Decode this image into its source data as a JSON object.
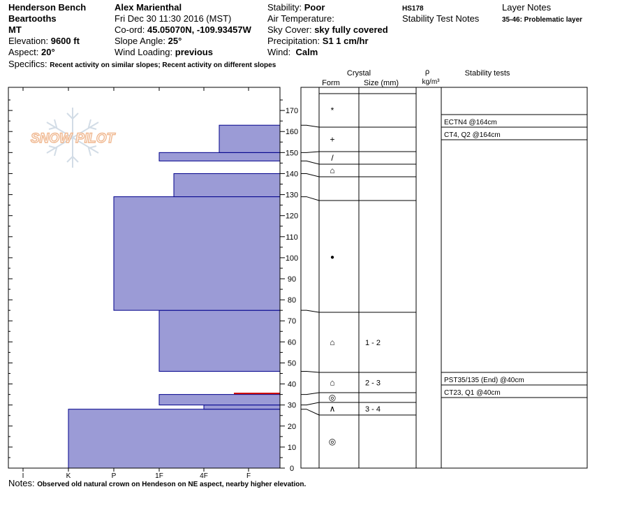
{
  "header": {
    "location": "Henderson Bench",
    "range": "Beartooths",
    "state": "MT",
    "elevation_label": "Elevation:",
    "elevation_value": "9600 ft",
    "aspect_label": "Aspect:",
    "aspect_value": "20°",
    "observer": "Alex Marienthal",
    "datetime": "Fri Dec 30 11:30 2016 (MST)",
    "coord_label": "Co-ord:",
    "coord_value": "45.05070N, -109.93457W",
    "slope_label": "Slope Angle:",
    "slope_value": "25°",
    "wind_loading_label": "Wind Loading:",
    "wind_loading_value": "previous",
    "stability_label": "Stability:",
    "stability_value": "Poor",
    "air_temp_label": "Air Temperature:",
    "sky_label": "Sky Cover:",
    "sky_value": "sky fully covered",
    "precip_label": "Precipitation:",
    "precip_value": "S1 1 cm/hr",
    "wind_label": "Wind:",
    "wind_value": "Calm",
    "pit_id": "HS178",
    "stability_notes": "Stability Test Notes",
    "layer_notes_title": "Layer Notes",
    "layer_note": "35-46: Problematic layer",
    "specifics_label": "Specifics:",
    "specifics_value": "Recent activity on similar slopes; Recent activity on different slopes",
    "notes_label": "Notes:",
    "notes_value": "Observed old natural crown on Hendeson on NE aspect, nearby higher elevation."
  },
  "watermark": {
    "text": "SNOW PILOT",
    "color": "#f0b890"
  },
  "colors": {
    "bar_fill": "#9b9bd6",
    "bar_stroke": "#00008b",
    "weak_layer": "#cc0000"
  },
  "chart_data": {
    "type": "bar",
    "orientation": "horizontal",
    "description_axis_x": "hand hardness",
    "x_ticks": [
      "I",
      "K",
      "P",
      "1F",
      "4F",
      "F"
    ],
    "x_order": [
      "F",
      "4F",
      "1F",
      "P",
      "K",
      "I"
    ],
    "ylim": [
      0,
      180
    ],
    "y_ticks": [
      0,
      10,
      20,
      30,
      40,
      50,
      60,
      70,
      80,
      90,
      100,
      110,
      120,
      130,
      140,
      150,
      160,
      170
    ],
    "layers": [
      {
        "bottom": 0,
        "top": 28,
        "hardness": "K"
      },
      {
        "bottom": 28,
        "top": 30,
        "hardness": "4F"
      },
      {
        "bottom": 30,
        "top": 35,
        "hardness": "1F"
      },
      {
        "bottom": 35,
        "top": 46,
        "hardness": "F"
      },
      {
        "bottom": 46,
        "top": 75,
        "hardness": "1F"
      },
      {
        "bottom": 75,
        "top": 129,
        "hardness": "P"
      },
      {
        "bottom": 129,
        "top": 140,
        "hardness": "1F-"
      },
      {
        "bottom": 140,
        "top": 146,
        "hardness": "F"
      },
      {
        "bottom": 146,
        "top": 150,
        "hardness": "1F"
      },
      {
        "bottom": 150,
        "top": 163,
        "hardness": "4F-"
      },
      {
        "bottom": 163,
        "top": 178,
        "hardness": "F"
      }
    ],
    "weak_layer_height": 35.5,
    "column_headers": {
      "crystal": "Crystal",
      "form": "Form",
      "size": "Size (mm)",
      "rho": "ρ",
      "rho_unit": "kg/m³",
      "stability_tests": "Stability tests"
    },
    "strata_rows": [
      {
        "top": 178,
        "bottom": 163,
        "form": "*",
        "size": ""
      },
      {
        "top": 163,
        "bottom": 150,
        "form": "+",
        "size": ""
      },
      {
        "top": 150,
        "bottom": 146,
        "form": "/",
        "size": ""
      },
      {
        "top": 146,
        "bottom": 140,
        "form": "⌂",
        "size": ""
      },
      {
        "top": 140,
        "bottom": 129,
        "form": "",
        "size": ""
      },
      {
        "top": 129,
        "bottom": 75,
        "form": "●",
        "size": ""
      },
      {
        "top": 75,
        "bottom": 46,
        "form": "⌂",
        "size": "1 - 2"
      },
      {
        "top": 46,
        "bottom": 35,
        "form": "⌂",
        "size": "2 - 3"
      },
      {
        "top": 35,
        "bottom": 30,
        "form": "◎",
        "size": ""
      },
      {
        "top": 30,
        "bottom": 28,
        "form": "∧",
        "size": "3 - 4"
      },
      {
        "top": 28,
        "bottom": 0,
        "form": "◎",
        "size": ""
      }
    ],
    "stability_tests": [
      {
        "label": "ECTN4 @164cm",
        "height": 164
      },
      {
        "label": "CT4, Q2 @164cm",
        "height": 164
      },
      {
        "label": "PST35/135 (End) @40cm",
        "height": 40
      },
      {
        "label": "CT23, Q1 @40cm",
        "height": 40
      }
    ]
  }
}
